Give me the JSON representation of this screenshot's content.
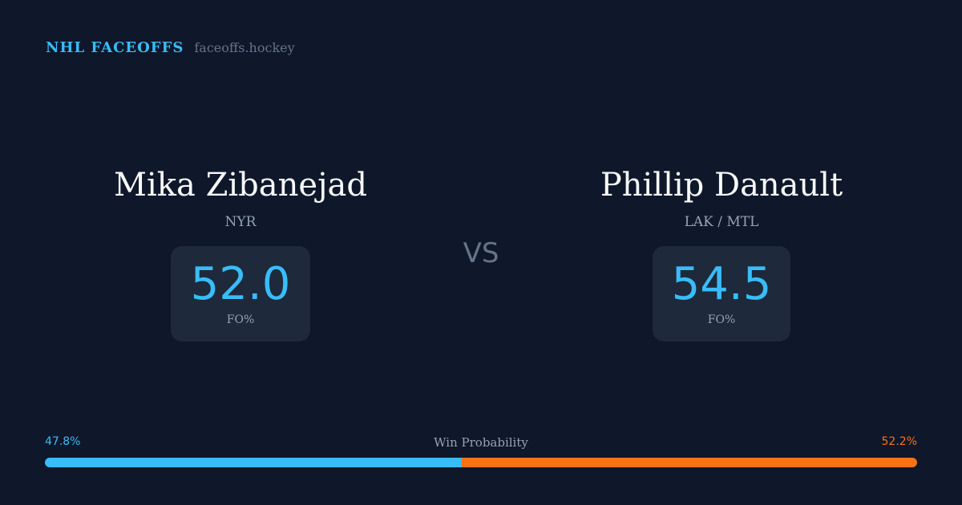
{
  "brand": {
    "name": "NHL FACEOFFS",
    "url": "faceoffs.hockey"
  },
  "players": [
    {
      "name": "Mika Zibanejad",
      "team": "NYR",
      "fo_pct": "52.0",
      "fo_label": "FO%"
    },
    {
      "name": "Phillip Danault",
      "team": "LAK / MTL",
      "fo_pct": "54.5",
      "fo_label": "FO%"
    }
  ],
  "vs": "VS",
  "win_probability": {
    "label": "Win Probability",
    "left": "47.8%",
    "right": "52.2%",
    "left_value": 47.8,
    "right_value": 52.2,
    "colors": {
      "left": "#38bdf8",
      "right": "#f97316"
    }
  }
}
